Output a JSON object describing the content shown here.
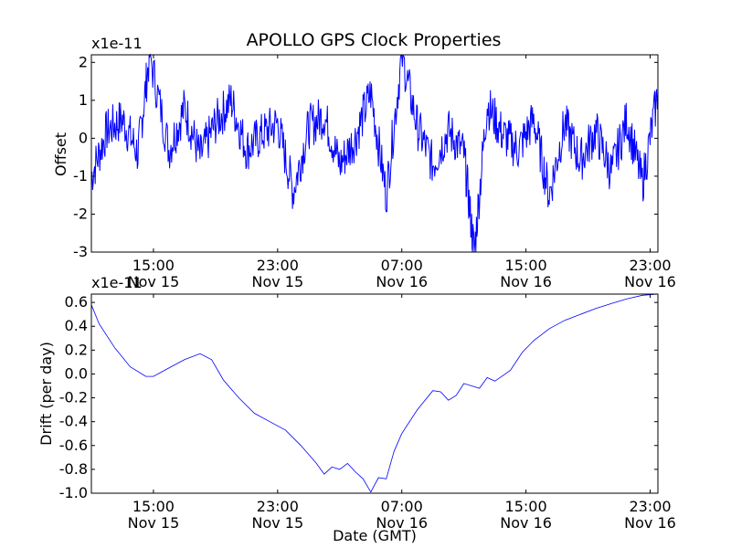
{
  "figure": {
    "title": "APOLLO GPS Clock Properties",
    "xlabel": "Date (GMT)"
  },
  "chart_data": [
    {
      "type": "line",
      "title": "APOLLO GPS Clock Properties",
      "ylabel": "Offset",
      "multiplier": "x1e-11",
      "ylim": [
        -3,
        2.2
      ],
      "yticks": [
        "-3",
        "-2",
        "-1",
        "0",
        "1",
        "2"
      ],
      "xtick_labels": [
        [
          "15:00",
          "Nov 15"
        ],
        [
          "23:00",
          "Nov 15"
        ],
        [
          "07:00",
          "Nov 16"
        ],
        [
          "15:00",
          "Nov 16"
        ],
        [
          "23:00",
          "Nov 16"
        ]
      ],
      "xlim": [
        "2010-11-15 11:00",
        "2010-11-16 23:30"
      ],
      "color": "#0000ff",
      "series": [
        {
          "x_hours_note_omitted": null,
          "x": [
            "2010-11-15 11:00",
            "2010-11-15 12:00",
            "2010-11-15 13:00",
            "2010-11-15 14:00",
            "2010-11-15 14:45",
            "2010-11-15 16:00",
            "2010-11-15 17:00",
            "2010-11-15 18:00",
            "2010-11-15 19:00",
            "2010-11-15 20:00",
            "2010-11-15 21:00",
            "2010-11-15 22:00",
            "2010-11-15 23:00",
            "2010-11-16 00:00",
            "2010-11-16 01:00",
            "2010-11-16 02:00",
            "2010-11-16 03:00",
            "2010-11-16 04:00",
            "2010-11-16 05:00",
            "2010-11-16 06:00",
            "2010-11-16 07:00",
            "2010-11-16 08:00",
            "2010-11-16 09:00",
            "2010-11-16 10:00",
            "2010-11-16 11:00",
            "2010-11-16 11:40",
            "2010-11-16 12:30",
            "2010-11-16 13:30",
            "2010-11-16 14:30",
            "2010-11-16 15:30",
            "2010-11-16 16:30",
            "2010-11-16 17:30",
            "2010-11-16 18:30",
            "2010-11-16 19:30",
            "2010-11-16 20:30",
            "2010-11-16 21:30",
            "2010-11-16 22:30",
            "2010-11-16 23:30"
          ],
          "values": [
            -1.0,
            0.2,
            0.5,
            -0.4,
            2.2,
            -0.3,
            0.8,
            -0.5,
            0.4,
            1.0,
            -0.3,
            0.1,
            0.4,
            -1.4,
            0.3,
            0.6,
            -0.7,
            0.0,
            1.2,
            -1.5,
            2.2,
            0.3,
            -0.7,
            0.2,
            -0.4,
            -3.0,
            0.9,
            0.1,
            -0.3,
            0.5,
            -1.5,
            0.4,
            -0.6,
            0.2,
            -0.9,
            0.5,
            -1.2,
            1.2
          ]
        }
      ]
    },
    {
      "type": "line",
      "ylabel": "Drift (per day)",
      "multiplier": "x1e-11",
      "ylim": [
        -1.0,
        0.67
      ],
      "yticks": [
        "-1.0",
        "-0.8",
        "-0.6",
        "-0.4",
        "-0.2",
        "0.0",
        "0.2",
        "0.4",
        "0.6"
      ],
      "xlabel": "Date (GMT)",
      "xtick_labels": [
        [
          "15:00",
          "Nov 15"
        ],
        [
          "23:00",
          "Nov 15"
        ],
        [
          "07:00",
          "Nov 16"
        ],
        [
          "15:00",
          "Nov 16"
        ],
        [
          "23:00",
          "Nov 16"
        ]
      ],
      "xlim": [
        "2010-11-15 11:00",
        "2010-11-16 23:30"
      ],
      "color": "#0000ff",
      "series": [
        {
          "x": [
            "2010-11-15 11:00",
            "2010-11-15 11:30",
            "2010-11-15 12:30",
            "2010-11-15 13:30",
            "2010-11-15 14:30",
            "2010-11-15 15:00",
            "2010-11-15 16:00",
            "2010-11-15 17:00",
            "2010-11-15 18:00",
            "2010-11-15 18:45",
            "2010-11-15 19:30",
            "2010-11-15 20:30",
            "2010-11-15 21:30",
            "2010-11-15 22:30",
            "2010-11-15 23:30",
            "2010-11-16 00:30",
            "2010-11-16 01:30",
            "2010-11-16 02:00",
            "2010-11-16 02:30",
            "2010-11-16 03:00",
            "2010-11-16 03:30",
            "2010-11-16 04:00",
            "2010-11-16 04:30",
            "2010-11-16 05:00",
            "2010-11-16 05:30",
            "2010-11-16 06:00",
            "2010-11-16 06:30",
            "2010-11-16 07:00",
            "2010-11-16 08:00",
            "2010-11-16 09:00",
            "2010-11-16 09:30",
            "2010-11-16 10:00",
            "2010-11-16 10:30",
            "2010-11-16 11:00",
            "2010-11-16 12:00",
            "2010-11-16 12:30",
            "2010-11-16 13:00",
            "2010-11-16 14:00",
            "2010-11-16 14:45",
            "2010-11-16 15:30",
            "2010-11-16 16:30",
            "2010-11-16 17:30",
            "2010-11-16 18:30",
            "2010-11-16 19:30",
            "2010-11-16 20:30",
            "2010-11-16 21:30",
            "2010-11-16 22:30",
            "2010-11-16 23:30"
          ],
          "values": [
            0.58,
            0.42,
            0.22,
            0.06,
            -0.02,
            -0.02,
            0.05,
            0.12,
            0.17,
            0.12,
            -0.05,
            -0.2,
            -0.33,
            -0.4,
            -0.47,
            -0.6,
            -0.75,
            -0.84,
            -0.78,
            -0.8,
            -0.75,
            -0.82,
            -0.88,
            -0.99,
            -0.87,
            -0.88,
            -0.65,
            -0.5,
            -0.3,
            -0.14,
            -0.15,
            -0.22,
            -0.18,
            -0.08,
            -0.12,
            -0.03,
            -0.06,
            0.03,
            0.18,
            0.28,
            0.38,
            0.45,
            0.5,
            0.55,
            0.59,
            0.63,
            0.66,
            0.67
          ]
        }
      ]
    }
  ]
}
